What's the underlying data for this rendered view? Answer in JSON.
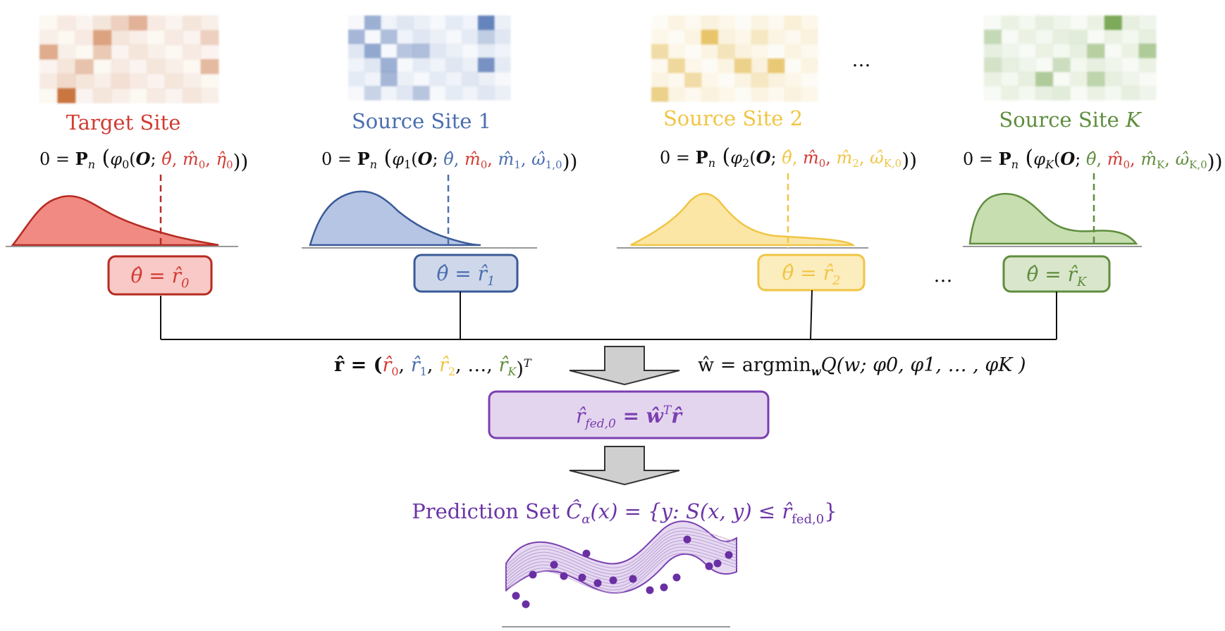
{
  "colors": {
    "target": "#d23b33",
    "source1": "#4a6eaf",
    "source2": "#f0c545",
    "sourceK": "#5f8d3d",
    "fed": "#7a3fb0"
  },
  "sites": [
    {
      "key": "target",
      "title": "Target Site",
      "eq_lead": "0 = ",
      "eq_P": "P",
      "eq_n": "n",
      "eq_phi": "φ",
      "eq_phi_sub": "0",
      "eq_O": "O",
      "eq_params": [
        {
          "base": "θ̂",
          "sub": "",
          "color": "#d23b33"
        },
        {
          "base": "m̂",
          "sub": "0",
          "color": "#d23b33"
        },
        {
          "base": "η̂",
          "sub": "0",
          "color": "#d23b33"
        }
      ],
      "box_lhs": "θ̂ = r̂",
      "box_sub": "0"
    },
    {
      "key": "source1",
      "title": "Source Site 1",
      "eq_lead": "0 = ",
      "eq_P": "P",
      "eq_n": "n",
      "eq_phi": "φ",
      "eq_phi_sub": "1",
      "eq_O": "O",
      "eq_params": [
        {
          "base": "θ̂",
          "sub": "",
          "color": "#4a6eaf"
        },
        {
          "base": "m̂",
          "sub": "0",
          "color": "#d23b33"
        },
        {
          "base": "m̂",
          "sub": "1",
          "color": "#4a6eaf"
        },
        {
          "base": "ω̂",
          "sub": "1,0",
          "color": "#4a6eaf"
        }
      ],
      "box_lhs": "θ̂ = r̂",
      "box_sub": "1"
    },
    {
      "key": "source2",
      "title": "Source Site 2",
      "eq_lead": "0 = ",
      "eq_P": "P",
      "eq_n": "n",
      "eq_phi": "φ",
      "eq_phi_sub": "2",
      "eq_O": "O",
      "eq_params": [
        {
          "base": "θ̂",
          "sub": "",
          "color": "#f0c545"
        },
        {
          "base": "m̂",
          "sub": "0",
          "color": "#d23b33"
        },
        {
          "base": "m̂",
          "sub": "2",
          "color": "#f0c545"
        },
        {
          "base": "ω̂",
          "sub": "K,0",
          "color": "#f0c545"
        }
      ],
      "box_lhs": "θ̂ = r̂",
      "box_sub": "2"
    },
    {
      "key": "sourceK",
      "title": "Source Site K",
      "eq_lead": "0 = ",
      "eq_P": "P",
      "eq_n": "n",
      "eq_phi": "φ",
      "eq_phi_sub": "K",
      "eq_O": "O",
      "eq_params": [
        {
          "base": "θ̂",
          "sub": "",
          "color": "#5f8d3d"
        },
        {
          "base": "m̂",
          "sub": "0",
          "color": "#d23b33"
        },
        {
          "base": "m̂",
          "sub": "K",
          "color": "#5f8d3d"
        },
        {
          "base": "ω̂",
          "sub": "K,0",
          "color": "#5f8d3d"
        }
      ],
      "box_lhs": "θ̂ = r̂",
      "box_sub": "K"
    }
  ],
  "ellipsis_top": "…",
  "ellipsis_box": "…",
  "r_vector": {
    "lhs": "r̂ = (",
    "items": [
      {
        "base": "r̂",
        "sub": "0",
        "color": "#d23b33"
      },
      {
        "base": "r̂",
        "sub": "1",
        "color": "#4a6eaf"
      },
      {
        "base": "r̂",
        "sub": "2",
        "color": "#f0c545"
      },
      {
        "base": "…",
        "sub": "",
        "color": "#111111"
      },
      {
        "base": "r̂",
        "sub": "K",
        "color": "#5f8d3d"
      }
    ],
    "close": ")",
    "sup": "T"
  },
  "w_equation": {
    "lhs": "ŵ = argmin",
    "sub": "w",
    "rhs": "Q(w; φ0, φ1, … , φK )"
  },
  "fed_box": {
    "lhs": "r̂",
    "sub": "fed,0",
    "rhs": " = ŵ",
    "sup": "T",
    "tail": "r̂"
  },
  "prediction": {
    "prefix": "Prediction Set ",
    "C": "Ĉ",
    "alpha": "α",
    "mid": "(x) = {y: S(x, y) ≤ r̂",
    "sub": "fed,0",
    "close": "}"
  }
}
